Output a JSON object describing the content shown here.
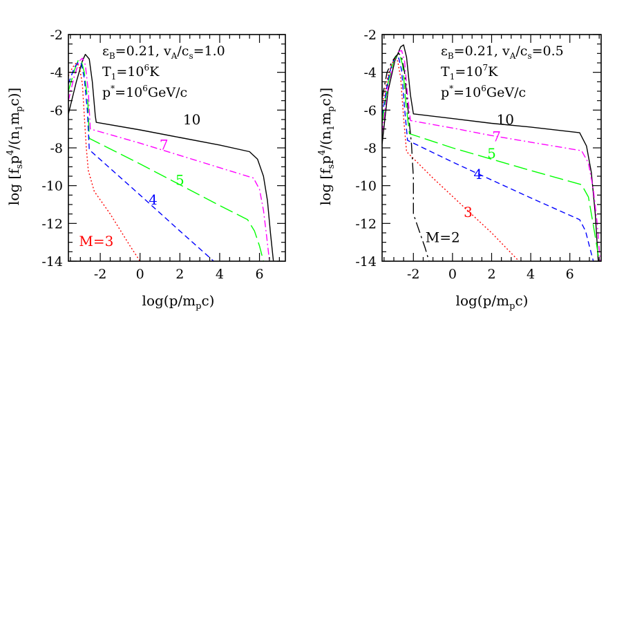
{
  "chart_data": [
    {
      "type": "line",
      "xlabel": "log(p/m",
      "xlabel_sub": "p",
      "xlabel_end": "c)",
      "ylabel": "log [f",
      "ylabel_s": "s",
      "ylabel_mid": "p",
      "ylabel_sup": "4",
      "ylabel_mid2": "/(n",
      "ylabel_sub1": "1",
      "ylabel_mid3": "m",
      "ylabel_subp": "p",
      "ylabel_end": "c)]",
      "xlim": [
        -3.6,
        7.3
      ],
      "ylim": [
        -14,
        -2
      ],
      "x_ticks": [
        "-2",
        "0",
        "2",
        "4",
        "6"
      ],
      "y_ticks": [
        "-2",
        "-4",
        "-6",
        "-8",
        "-10",
        "-12",
        "-14"
      ],
      "annotations": {
        "line1_eps": "ε",
        "line1_eps_sub": "B",
        "line1_rest": "=0.21,  v",
        "line1_va_sub": "A",
        "line1_cs": "/c",
        "line1_cs_sub": "s",
        "line1_val": "=1.0",
        "line2_T": "T",
        "line2_T_sub": "1",
        "line2_eq": "=10",
        "line2_exp": "6",
        "line2_unit": "K",
        "line3_p": "p",
        "line3_star": "*",
        "line3_eq": "=10",
        "line3_exp": "6",
        "line3_unit": "GeV/c"
      },
      "series": [
        {
          "name": "10",
          "color": "#000000",
          "dash": "solid",
          "x": [
            -3.6,
            -3.2,
            -2.9,
            -2.75,
            -2.55,
            -2.4,
            -2.25,
            -2.2,
            0,
            2,
            4,
            5.5,
            5.9,
            6.2,
            6.4,
            6.55,
            6.7
          ],
          "y": [
            -6.2,
            -4.5,
            -3.4,
            -3.05,
            -3.3,
            -4.5,
            -6.3,
            -6.65,
            -7.05,
            -7.45,
            -7.85,
            -8.2,
            -8.6,
            -9.5,
            -10.8,
            -12.5,
            -14
          ]
        },
        {
          "name": "7",
          "color": "#ff00ff",
          "dash": "dashdot",
          "x": [
            -3.6,
            -3.3,
            -3.05,
            -2.9,
            -2.75,
            -2.6,
            -2.5,
            0,
            2,
            4,
            5.7,
            6.0,
            6.2,
            6.35,
            6.5
          ],
          "y": [
            -5.5,
            -4.2,
            -3.4,
            -3.25,
            -3.6,
            -5.0,
            -7.0,
            -7.75,
            -8.4,
            -9.05,
            -9.6,
            -10.2,
            -11.3,
            -12.6,
            -14
          ]
        },
        {
          "name": "5",
          "color": "#00ff00",
          "dash": "longdash",
          "x": [
            -3.6,
            -3.3,
            -3.1,
            -2.95,
            -2.8,
            -2.62,
            -2.55,
            0,
            2,
            4,
            5.4,
            5.75,
            6.0,
            6.2
          ],
          "y": [
            -5.0,
            -3.9,
            -3.35,
            -3.4,
            -4.0,
            -5.6,
            -7.5,
            -8.85,
            -9.95,
            -11.05,
            -11.8,
            -12.4,
            -13.2,
            -14
          ]
        },
        {
          "name": "4",
          "color": "#0000ff",
          "dash": "dash",
          "x": [
            -3.6,
            -3.3,
            -3.1,
            -2.95,
            -2.8,
            -2.65,
            -2.55,
            0,
            2,
            3.7
          ],
          "y": [
            -4.6,
            -3.75,
            -3.45,
            -3.55,
            -4.3,
            -6.0,
            -8.1,
            -10.5,
            -12.4,
            -14.0
          ]
        },
        {
          "name": "M=3",
          "color": "#ff0000",
          "dash": "dot",
          "x": [
            -3.6,
            -3.4,
            -3.2,
            -3.05,
            -2.9,
            -2.8,
            -2.7,
            -2.6,
            -2.3,
            -1.5,
            -0.5,
            0.0
          ],
          "y": [
            -4.2,
            -3.75,
            -3.5,
            -3.7,
            -4.6,
            -6.3,
            -8.0,
            -9.2,
            -10.3,
            -11.5,
            -13.2,
            -14
          ]
        }
      ],
      "labels": [
        {
          "text": "10",
          "color": "#000000",
          "x": 2.6,
          "y": -6.75
        },
        {
          "text": "7",
          "color": "#ff00ff",
          "x": 1.2,
          "y": -8.1
        },
        {
          "text": "5",
          "color": "#00ff00",
          "x": 2.0,
          "y": -9.95
        },
        {
          "text": "4",
          "color": "#0000ff",
          "x": 0.65,
          "y": -11.0
        },
        {
          "text": "M=3",
          "color": "#ff0000",
          "x": -2.2,
          "y": -13.2
        }
      ]
    },
    {
      "type": "line",
      "xlabel": "log(p/m",
      "xlabel_sub": "p",
      "xlabel_end": "c)",
      "ylabel": "log [f",
      "ylabel_s": "s",
      "ylabel_mid": "p",
      "ylabel_sup": "4",
      "ylabel_mid2": "/(n",
      "ylabel_sub1": "1",
      "ylabel_mid3": "m",
      "ylabel_subp": "p",
      "ylabel_end": "c)]",
      "xlim": [
        -3.6,
        7.6
      ],
      "ylim": [
        -14,
        -2
      ],
      "x_ticks": [
        "-2",
        "0",
        "2",
        "4",
        "6"
      ],
      "y_ticks": [
        "-2",
        "-4",
        "-6",
        "-8",
        "-10",
        "-12",
        "-14"
      ],
      "annotations": {
        "line1_eps": "ε",
        "line1_eps_sub": "B",
        "line1_rest": "=0.21,  v",
        "line1_va_sub": "A",
        "line1_cs": "/c",
        "line1_cs_sub": "s",
        "line1_val": "=0.5",
        "line2_T": "T",
        "line2_T_sub": "1",
        "line2_eq": "=10",
        "line2_exp": "7",
        "line2_unit": "K",
        "line3_p": "p",
        "line3_star": "*",
        "line3_eq": "=10",
        "line3_exp": "6",
        "line3_unit": "GeV/c"
      },
      "series": [
        {
          "name": "10",
          "color": "#000000",
          "dash": "solid",
          "x": [
            -3.6,
            -3.3,
            -2.95,
            -2.65,
            -2.5,
            -2.35,
            -2.15,
            -2.0,
            0,
            2,
            4,
            6.5,
            6.85,
            7.1,
            7.3,
            7.45
          ],
          "y": [
            -7.8,
            -5.0,
            -3.4,
            -2.65,
            -2.55,
            -3.2,
            -5.2,
            -6.2,
            -6.45,
            -6.7,
            -6.9,
            -7.2,
            -7.9,
            -9.3,
            -11.5,
            -14
          ]
        },
        {
          "name": "7",
          "color": "#ff00ff",
          "dash": "dashdot",
          "x": [
            -3.6,
            -3.3,
            -3.0,
            -2.75,
            -2.6,
            -2.45,
            -2.3,
            -2.15,
            0,
            2,
            4,
            6.6,
            6.95,
            7.2,
            7.4,
            7.55
          ],
          "y": [
            -7.2,
            -4.8,
            -3.45,
            -2.9,
            -2.85,
            -3.4,
            -5.2,
            -6.55,
            -6.95,
            -7.35,
            -7.7,
            -8.15,
            -8.8,
            -10.2,
            -12.0,
            -14
          ]
        },
        {
          "name": "5",
          "color": "#00ff00",
          "dash": "longdash",
          "x": [
            -3.6,
            -3.3,
            -3.05,
            -2.85,
            -2.7,
            -2.55,
            -2.4,
            -2.2,
            0,
            2,
            4,
            6.6,
            6.95,
            7.15,
            7.35,
            7.5
          ],
          "y": [
            -6.7,
            -4.6,
            -3.55,
            -3.1,
            -3.1,
            -3.6,
            -5.5,
            -7.25,
            -8.0,
            -8.6,
            -9.2,
            -9.95,
            -10.6,
            -11.8,
            -13.0,
            -14
          ]
        },
        {
          "name": "4",
          "color": "#0000ff",
          "dash": "dash",
          "x": [
            -3.6,
            -3.3,
            -3.1,
            -2.9,
            -2.75,
            -2.6,
            -2.45,
            -2.3,
            0,
            2,
            4,
            6.5,
            6.8,
            7.0,
            7.2
          ],
          "y": [
            -6.3,
            -4.4,
            -3.55,
            -3.2,
            -3.25,
            -3.9,
            -5.9,
            -7.6,
            -8.75,
            -9.7,
            -10.65,
            -11.8,
            -12.4,
            -13.2,
            -14
          ]
        },
        {
          "name": "3",
          "color": "#ff0000",
          "dash": "dot",
          "x": [
            -3.6,
            -3.3,
            -3.1,
            -2.95,
            -2.8,
            -2.65,
            -2.5,
            -2.35,
            -1.0,
            0.5,
            2.0,
            3.4
          ],
          "y": [
            -5.8,
            -4.2,
            -3.55,
            -3.3,
            -3.4,
            -4.3,
            -6.4,
            -8.2,
            -9.6,
            -11.05,
            -12.5,
            -14
          ]
        },
        {
          "name": "M=2",
          "color": "#000000",
          "dash": "longdashdot",
          "x": [
            -3.6,
            -3.35,
            -3.1,
            -2.9,
            -2.75,
            -2.6,
            -2.45,
            -2.35,
            -2.1,
            -2.0,
            -2.0,
            -1.7,
            -1.4,
            -1.2
          ],
          "y": [
            -5.4,
            -4.0,
            -3.45,
            -3.15,
            -3.0,
            -3.2,
            -4.0,
            -5.2,
            -7.8,
            -9.6,
            -11.5,
            -12.4,
            -13.3,
            -14
          ]
        }
      ],
      "labels": [
        {
          "text": "10",
          "color": "#000000",
          "x": 2.7,
          "y": -6.75
        },
        {
          "text": "7",
          "color": "#ff00ff",
          "x": 2.25,
          "y": -7.65
        },
        {
          "text": "5",
          "color": "#00ff00",
          "x": 2.0,
          "y": -8.55
        },
        {
          "text": "4",
          "color": "#0000ff",
          "x": 1.3,
          "y": -9.65
        },
        {
          "text": "3",
          "color": "#ff0000",
          "x": 0.8,
          "y": -11.65
        },
        {
          "text": "M=2",
          "color": "#000000",
          "x": -0.5,
          "y": -13.0
        }
      ]
    }
  ]
}
